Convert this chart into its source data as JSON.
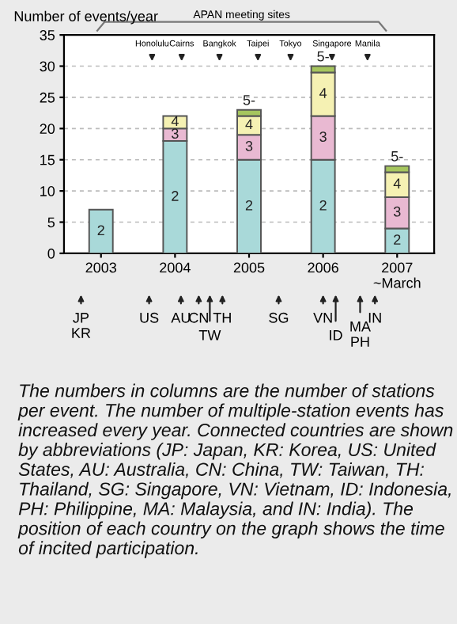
{
  "chart_data": {
    "type": "bar",
    "stacked": true,
    "ylabel": "Number of events/year",
    "categories": [
      "2003",
      "2004",
      "2005",
      "2006",
      "2007\n~March"
    ],
    "series": [
      {
        "name": "2",
        "color": "#a9d9d9",
        "values": [
          7,
          18,
          15,
          15,
          4
        ]
      },
      {
        "name": "3",
        "color": "#e9b9d2",
        "values": [
          null,
          2,
          4,
          7,
          5
        ]
      },
      {
        "name": "4",
        "color": "#f5f1b3",
        "values": [
          null,
          2,
          3,
          7,
          4
        ]
      },
      {
        "name": "5-",
        "color": "#a6c65e",
        "values": [
          null,
          null,
          1,
          1,
          1
        ]
      }
    ],
    "ylim": [
      0,
      35
    ],
    "yticks": [
      0,
      5,
      10,
      15,
      20,
      25,
      30,
      35
    ],
    "grid": "y",
    "annotations": [
      "APAN meeting sites",
      "Honolulu",
      "Cairns",
      "Bangkok",
      "Taipei",
      "Tokyo",
      "Singapore",
      "Manila",
      "JP",
      "KR",
      "US",
      "AU",
      "CN",
      "TW",
      "TH",
      "SG",
      "VN",
      "ID",
      "MA",
      "PH",
      "IN",
      "The numbers in columns are the number of stations per event. The number of multiple-station events has increased every year. Connected countries are shown by abbreviations (JP: Japan, KR: Korea, US: United States, AU: Australia, CN: China, TW: Taiwan, TH: Thailand, SG: Singapore, VN: Vietnam, ID: Indonesia, PH: Philippine, MA: Malaysia, and IN: India). The position of each country on the graph shows the time of incited participation."
    ]
  }
}
